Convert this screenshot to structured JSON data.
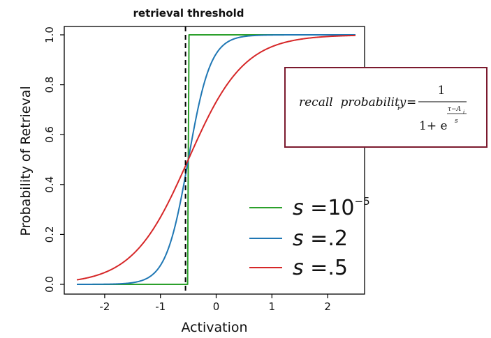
{
  "chart_data": {
    "type": "line",
    "title": "",
    "xlabel": "Activation",
    "ylabel": "Probability of Retrieval",
    "xlim": [
      -2.5,
      2.5
    ],
    "ylim": [
      0,
      1
    ],
    "x_ticks": [
      "-2",
      "-1",
      "0",
      "1",
      "2"
    ],
    "y_ticks": [
      "0.0",
      "0.2",
      "0.4",
      "0.6",
      "0.8",
      "1.0"
    ],
    "threshold": -0.5,
    "threshold_label": "retrieval threshold",
    "series": [
      {
        "name": "s =10⁻⁵",
        "s": 1e-05,
        "color": "#2ca02c"
      },
      {
        "name": "s = .2",
        "s": 0.2,
        "color": "#1f77b4"
      },
      {
        "name": "s = .5",
        "s": 0.5,
        "color": "#d62728"
      }
    ],
    "legend": {
      "placement": "bottom-right",
      "items": [
        {
          "prefix": "s =",
          "value": "10",
          "sup": "−5",
          "color": "#2ca02c"
        },
        {
          "prefix": "s =",
          "value": ".2",
          "sup": "",
          "color": "#1f77b4"
        },
        {
          "prefix": "s =",
          "value": ".5",
          "sup": "",
          "color": "#d62728"
        }
      ]
    },
    "formula": {
      "lhs": "recall  probability",
      "lhs_sub": "i",
      "equals": "=",
      "numerator": "1",
      "denominator": "1+ e",
      "exp_num": "τ−A",
      "exp_num_sub": "i",
      "exp_den": "s",
      "border_color": "#7b1a2e"
    }
  }
}
